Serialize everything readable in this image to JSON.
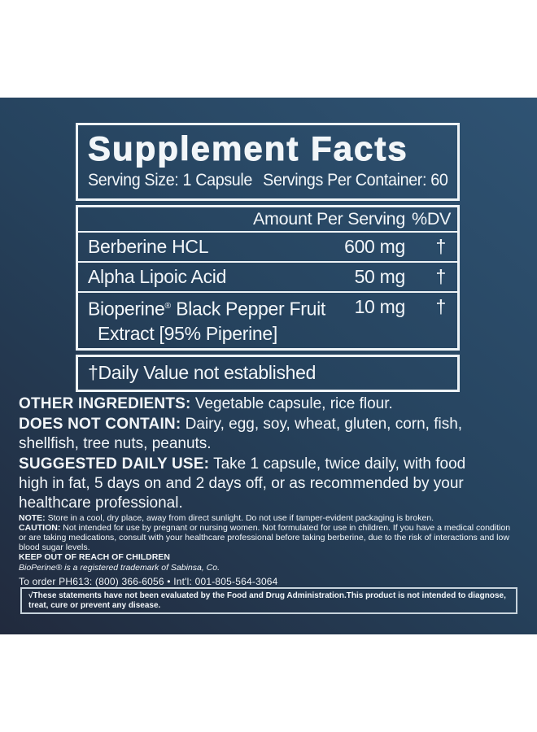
{
  "facts": {
    "title": "Supplement Facts",
    "serving_size": "Serving Size: 1 Capsule",
    "servings_per_container": "Servings Per Container: 60",
    "amount_header": "Amount Per Serving",
    "dv_header": "%DV",
    "rows": [
      {
        "name": "Berberine HCL",
        "amount": "600 mg",
        "dv": "†"
      },
      {
        "name": "Alpha Lipoic Acid",
        "amount": "50 mg",
        "dv": "†"
      },
      {
        "brand": "Bioperine",
        "reg": "®",
        "name_rest": " Black Pepper Fruit",
        "name_line2": "Extract [95% Piperine]",
        "amount": "10 mg",
        "dv": "†"
      }
    ],
    "footnote": "†Daily Value not established"
  },
  "body": {
    "other_ingredients_label": "OTHER INGREDIENTS:",
    "other_ingredients_text": "Vegetable capsule, rice flour.",
    "does_not_contain_label": "DOES NOT CONTAIN:",
    "does_not_contain_text": "Dairy, egg, soy, wheat, gluten, corn, fish, shellfish, tree nuts, peanuts.",
    "suggested_use_label": "SUGGESTED DAILY USE:",
    "suggested_use_text": "Take 1 capsule, twice daily, with food high in fat, 5 days on and 2 days off, or as recommended by your healthcare professional."
  },
  "fine_print": {
    "note_label": "NOTE:",
    "note_text": "Store in a cool, dry place, away from direct sunlight. Do not use if tamper-evident packaging is broken.",
    "caution_label": "CAUTION:",
    "caution_text": "Not intended for use by pregnant or nursing women. Not formulated for use in children. If you have a medical condition or are taking medications, consult with your healthcare professional before taking berberine, due to the risk of interactions and low blood sugar levels.",
    "keep_out": "KEEP OUT OF REACH OF CHILDREN",
    "trademark": "BioPerine® is a registered trademark of Sabinsa, Co.",
    "order_line": "To order PH613: (800) 366-6056 • Int'l: 001-805-564-3064"
  },
  "disclaimer": {
    "text": "√These statements have not been evaluated by the Food and Drug Administration.This product is not intended to diagnose, treat, cure or prevent any disease."
  },
  "colors": {
    "panel_top": "#2f5373",
    "panel_mid": "#26435e",
    "panel_bottom": "#212a3d",
    "text": "#f2f6f9",
    "border": "#eef3f6"
  }
}
